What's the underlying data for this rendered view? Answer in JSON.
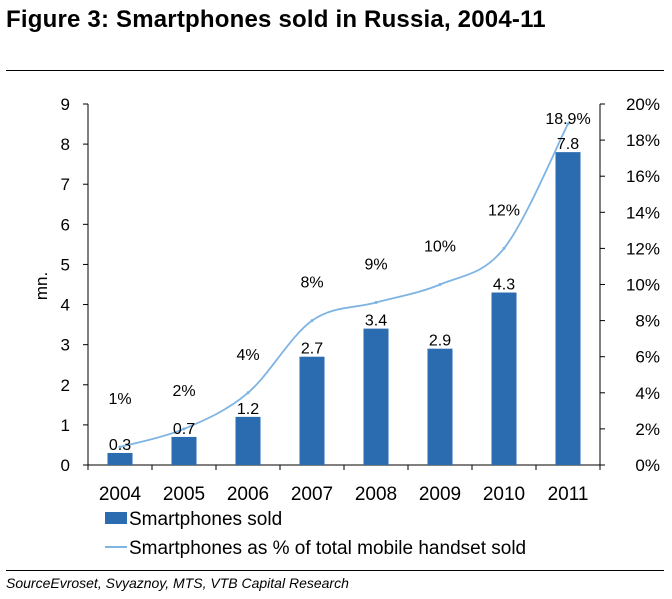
{
  "figure_title": "Figure 3: Smartphones sold in Russia, 2004-11",
  "source": "SourceEvroset, Svyaznoy, MTS, VTB Capital Research",
  "colors": {
    "bar": "#2b6cb0",
    "line": "#7eb4e3",
    "axis": "#000000",
    "text": "#000000"
  },
  "chart_data": {
    "type": "bar",
    "title": "Smartphones sold in Russia, 2004-11",
    "categories": [
      "2004",
      "2005",
      "2006",
      "2007",
      "2008",
      "2009",
      "2010",
      "2011"
    ],
    "series": [
      {
        "name": "Smartphones sold",
        "type": "bar",
        "axis": "left",
        "values": [
          0.3,
          0.7,
          1.2,
          2.7,
          3.4,
          2.9,
          4.3,
          7.8
        ],
        "labels": [
          "0.3",
          "0.7",
          "1.2",
          "2.7",
          "3.4",
          "2.9",
          "4.3",
          "7.8"
        ]
      },
      {
        "name": "Smartphones as % of total mobile handset sold",
        "type": "line",
        "axis": "right",
        "values": [
          1,
          2,
          4,
          8,
          9,
          10,
          12,
          18.9
        ],
        "labels": [
          "1%",
          "2%",
          "4%",
          "8%",
          "9%",
          "10%",
          "12%",
          "18.9%"
        ]
      }
    ],
    "ylabel": "mn.",
    "ylim": [
      0,
      9
    ],
    "yticks": [
      "0",
      "1",
      "2",
      "3",
      "4",
      "5",
      "6",
      "7",
      "8",
      "9"
    ],
    "y2lim": [
      0,
      20
    ],
    "y2ticks": [
      "0%",
      "2%",
      "4%",
      "6%",
      "8%",
      "10%",
      "12%",
      "14%",
      "16%",
      "18%",
      "20%"
    ],
    "legend": [
      "Smartphones sold",
      "Smartphones as % of total mobile handset sold"
    ],
    "legend_position": "bottom",
    "grid": false
  }
}
